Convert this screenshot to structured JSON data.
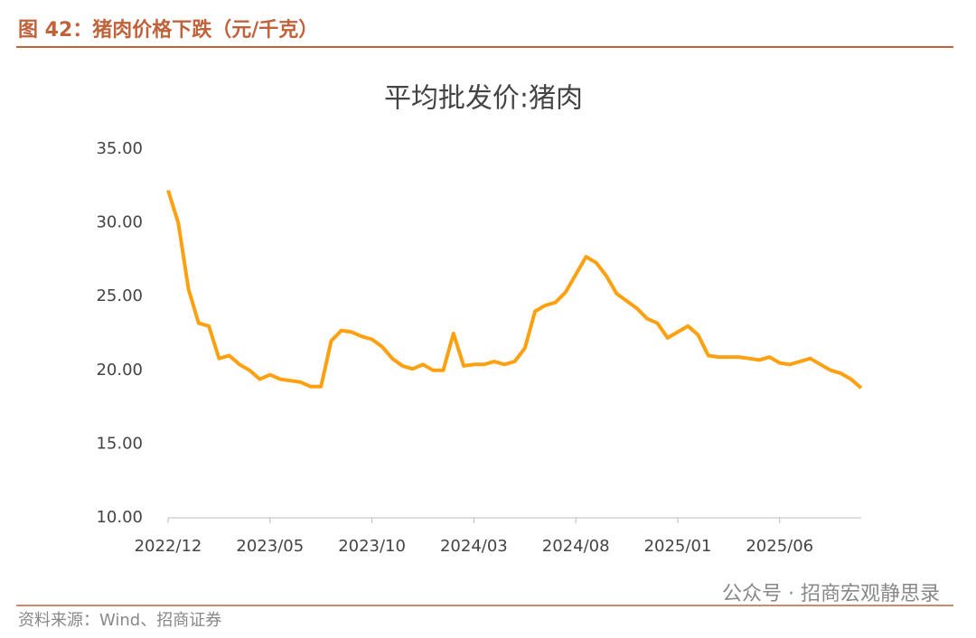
{
  "header": {
    "title": "图 42：猪肉价格下跌（元/千克）"
  },
  "chart_data": {
    "type": "line",
    "title": "平均批发价:猪肉",
    "categories": [
      "2022/12",
      null,
      null,
      null,
      null,
      null,
      null,
      null,
      null,
      null,
      "2023/05",
      null,
      null,
      null,
      null,
      null,
      null,
      null,
      null,
      null,
      "2023/10",
      null,
      null,
      null,
      null,
      null,
      null,
      null,
      null,
      null,
      "2024/03",
      null,
      null,
      null,
      null,
      null,
      null,
      null,
      null,
      null,
      "2024/08",
      null,
      null,
      null,
      null,
      null,
      null,
      null,
      null,
      null,
      "2025/01",
      null,
      null,
      null,
      null,
      null,
      null,
      null,
      null,
      null,
      "2025/06",
      null,
      null,
      null,
      null,
      null,
      null,
      null,
      null
    ],
    "series": [
      {
        "name": "平均批发价:猪肉",
        "color": "#ffa010",
        "values": [
          32.2,
          30.0,
          25.5,
          23.2,
          23.0,
          20.8,
          21.0,
          20.4,
          20.0,
          19.4,
          19.7,
          19.4,
          19.3,
          19.2,
          18.9,
          18.9,
          22.0,
          22.7,
          22.6,
          22.3,
          22.1,
          21.6,
          20.8,
          20.3,
          20.1,
          20.4,
          20.0,
          20.0,
          22.5,
          20.3,
          20.4,
          20.4,
          20.6,
          20.4,
          20.6,
          21.5,
          24.0,
          24.4,
          24.6,
          25.3,
          26.5,
          27.7,
          27.3,
          26.4,
          25.2,
          24.7,
          24.2,
          23.5,
          23.2,
          22.2,
          22.6,
          23.0,
          22.4,
          21.0,
          20.9,
          20.9,
          20.9,
          20.8,
          20.7,
          20.9,
          20.5,
          20.4,
          20.6,
          20.8,
          20.4,
          20.0,
          19.8,
          19.4,
          18.8
        ]
      }
    ],
    "ylim": [
      10,
      35
    ],
    "yticks": [
      {
        "value": 10,
        "label": "10.00"
      },
      {
        "value": 15,
        "label": "15.00"
      },
      {
        "value": 20,
        "label": "20.00"
      },
      {
        "value": 25,
        "label": "25.00"
      },
      {
        "value": 30,
        "label": "30.00"
      },
      {
        "value": 35,
        "label": "35.00"
      }
    ],
    "grid": false
  },
  "footer": {
    "source": "资料来源：Wind、招商证券",
    "watermark": "公众号 · 招商宏观静思录"
  }
}
